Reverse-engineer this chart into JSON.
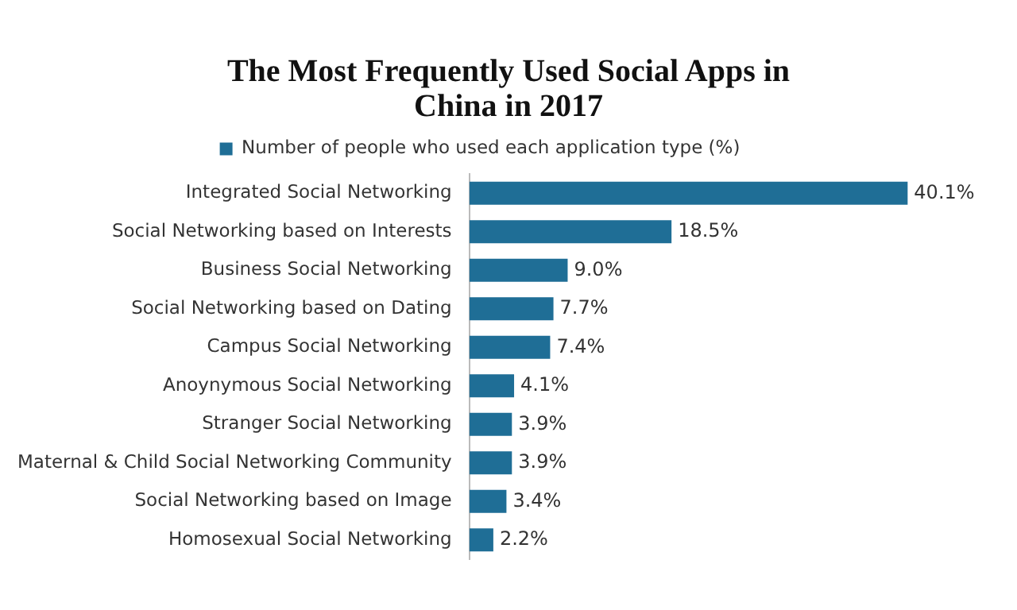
{
  "chart_data": {
    "type": "bar",
    "orientation": "horizontal",
    "title": "The Most Frequently Used Social Apps in China in 2017",
    "categories": [
      "Integrated Social Networking",
      "Social Networking based on Interests",
      "Business Social Networking",
      "Social Networking based on Dating",
      "Campus Social Networking",
      "Anoynymous Social Networking",
      "Stranger Social Networking",
      "Maternal & Child Social Networking Community",
      "Social Networking based on Image",
      "Homosexual Social Networking"
    ],
    "series": [
      {
        "name": "Number of people who used each application type (%)",
        "color": "#1f6e96",
        "values": [
          40.1,
          18.5,
          9.0,
          7.7,
          7.4,
          4.1,
          3.9,
          3.9,
          3.4,
          2.2
        ],
        "value_labels": [
          "40.1%",
          "18.5%",
          "9.0%",
          "7.7%",
          "7.4%",
          "4.1%",
          "3.9%",
          "3.9%",
          "3.4%",
          "2.2%"
        ]
      }
    ],
    "legend": "top"
  }
}
